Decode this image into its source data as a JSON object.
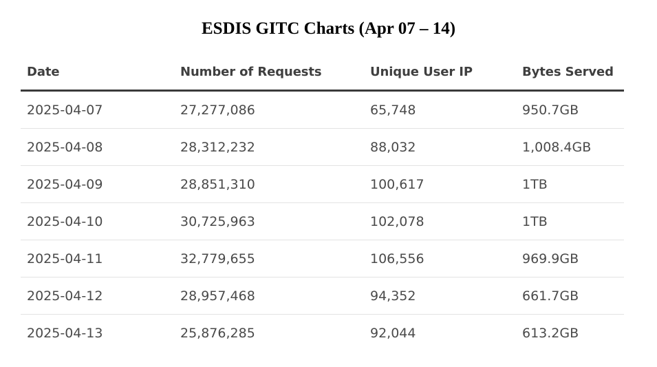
{
  "title": "ESDIS GITC Charts (Apr 07 – 14)",
  "table": {
    "headers": [
      "Date",
      "Number of Requests",
      "Unique User IP",
      "Bytes Served"
    ],
    "rows": [
      [
        "2025-04-07",
        "27,277,086",
        "65,748",
        "950.7GB"
      ],
      [
        "2025-04-08",
        "28,312,232",
        "88,032",
        "1,008.4GB"
      ],
      [
        "2025-04-09",
        "28,851,310",
        "100,617",
        "1TB"
      ],
      [
        "2025-04-10",
        "30,725,963",
        "102,078",
        "1TB"
      ],
      [
        "2025-04-11",
        "32,779,655",
        "106,556",
        "969.9GB"
      ],
      [
        "2025-04-12",
        "28,957,468",
        "94,352",
        "661.7GB"
      ],
      [
        "2025-04-13",
        "25,876,285",
        "92,044",
        "613.2GB"
      ]
    ]
  }
}
